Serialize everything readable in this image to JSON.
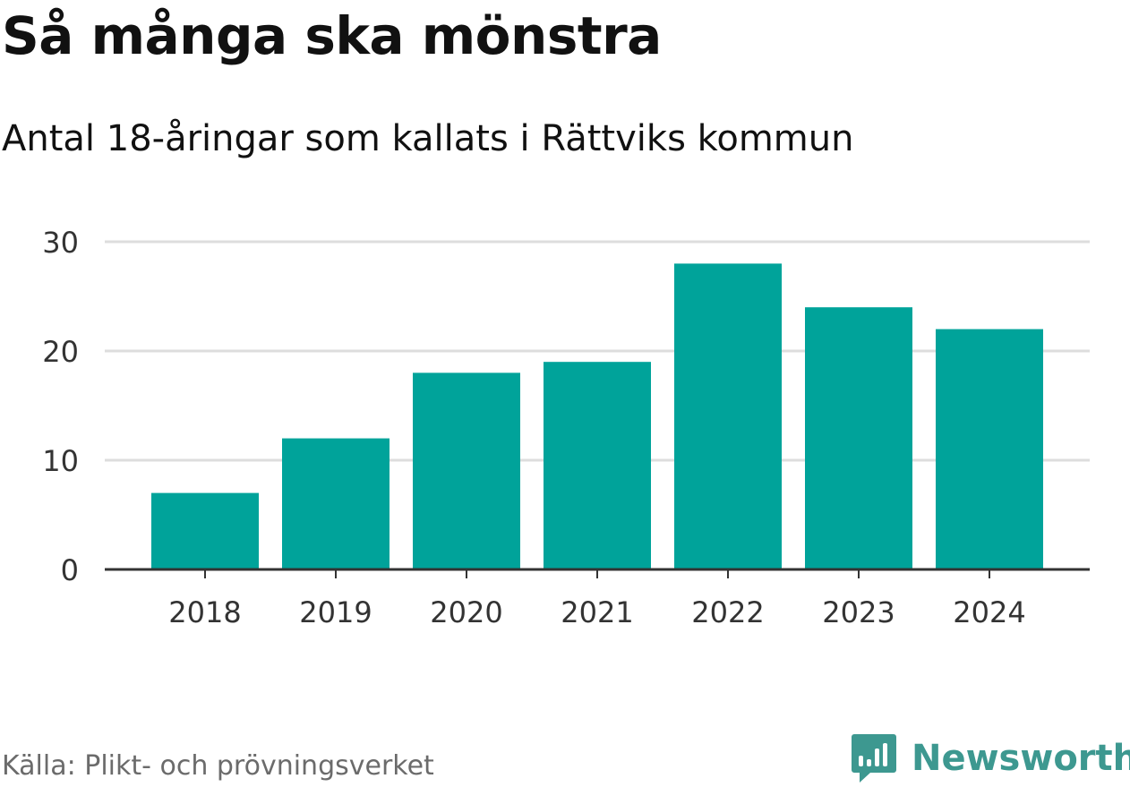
{
  "header": {
    "title": "Så många ska mönstra",
    "subtitle": "Antal 18-åringar som kallats i Rättviks kommun"
  },
  "footer": {
    "source": "Källa: Plikt- och prövningsverket",
    "brand": "Newsworthy",
    "brand_icon": "bar-chart-icon"
  },
  "colors": {
    "bar": "#00a39a",
    "grid": "#dddddd",
    "axis": "#333333",
    "tick_text": "#333333",
    "brand": "#3d9890"
  },
  "chart_data": {
    "type": "bar",
    "title": "Så många ska mönstra",
    "subtitle": "Antal 18-åringar som kallats i Rättviks kommun",
    "xlabel": "",
    "ylabel": "",
    "categories": [
      "2018",
      "2019",
      "2020",
      "2021",
      "2022",
      "2023",
      "2024"
    ],
    "values": [
      7,
      12,
      18,
      19,
      28,
      24,
      22
    ],
    "ylim": [
      0,
      30
    ],
    "yticks": [
      0,
      10,
      20,
      30
    ],
    "grid": true,
    "legend": "none"
  }
}
